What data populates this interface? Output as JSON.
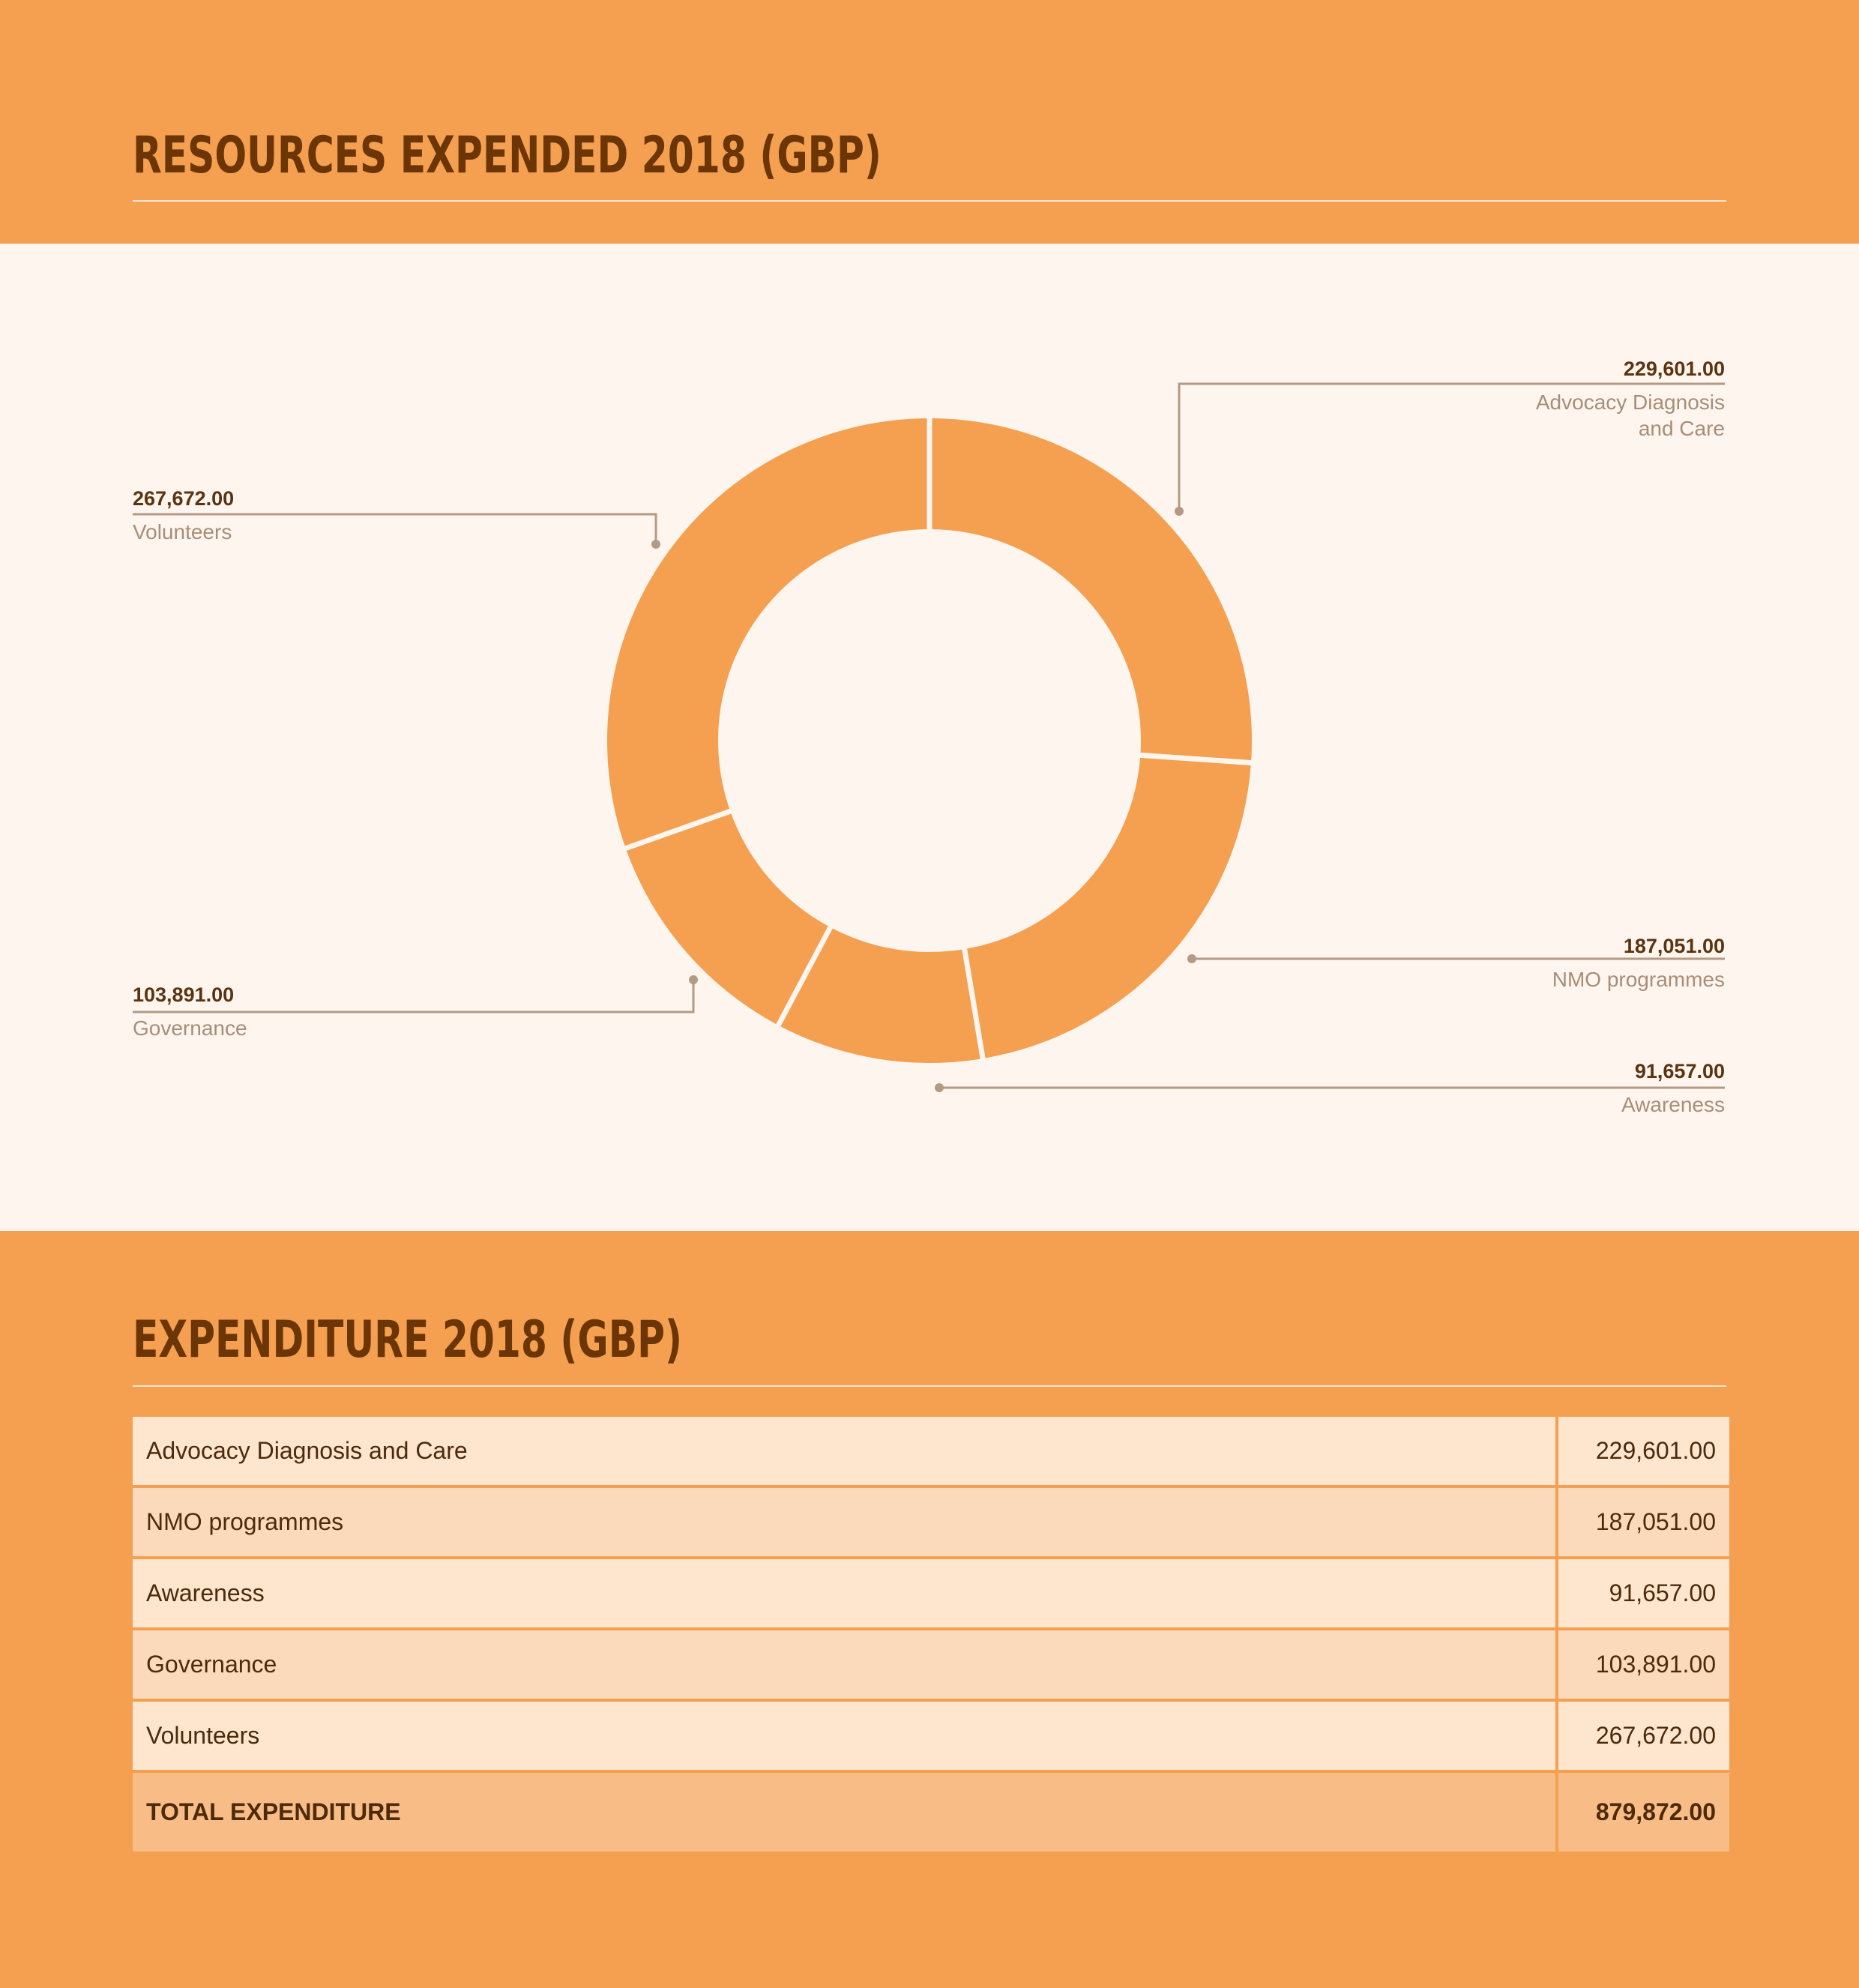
{
  "chart_data": {
    "type": "pie",
    "title": "RESOURCES EXPENDED 2018 (GBP)",
    "slices": [
      {
        "label_lines": [
          "Advocacy Diagnosis",
          "and Care"
        ],
        "value_text": "229,601.00",
        "value": 229601.0
      },
      {
        "label_lines": [
          "NMO programmes"
        ],
        "value_text": "187,051.00",
        "value": 187051.0
      },
      {
        "label_lines": [
          "Awareness"
        ],
        "value_text": "91,657.00",
        "value": 91657.0
      },
      {
        "label_lines": [
          "Governance"
        ],
        "value_text": "103,891.00",
        "value": 103891.0
      },
      {
        "label_lines": [
          "Volunteers"
        ],
        "value_text": "267,672.00",
        "value": 267672.0
      }
    ],
    "colors": {
      "slice": "#f59f50",
      "separator": "#fef6ee",
      "leader": "#b39a85"
    }
  },
  "headings": {
    "chart": "RESOURCES EXPENDED 2018 (GBP)",
    "table": "EXPENDITURE 2018 (GBP)"
  },
  "table": {
    "rows": [
      {
        "name": "Advocacy Diagnosis and Care",
        "amount": "229,601.00"
      },
      {
        "name": "NMO programmes",
        "amount": "187,051.00"
      },
      {
        "name": "Awareness",
        "amount": "91,657.00"
      },
      {
        "name": "Governance",
        "amount": "103,891.00"
      },
      {
        "name": "Volunteers",
        "amount": "267,672.00"
      }
    ],
    "total": {
      "name": "TOTAL EXPENDITURE",
      "amount": "879,872.00"
    }
  }
}
